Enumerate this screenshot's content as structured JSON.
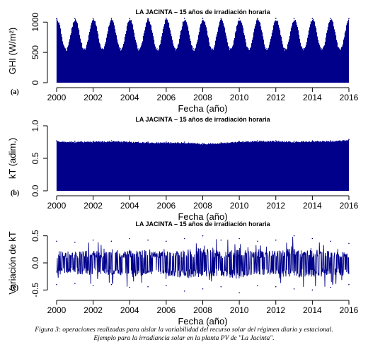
{
  "caption": {
    "line1": "Figura 3: operaciones realizadas para aislar la variabilidad del recurso solar del régimen diario y estacional.",
    "line2": "Ejemplo para la irradiancia solar en la planta PV de \"La Jacinta\"."
  },
  "chart_data": [
    {
      "type": "area",
      "panel_label": "(a)",
      "title": "LA JACINTA – 15 años de irradiación horaria",
      "xlabel": "Fecha (año)",
      "ylabel": "GHI (W/m²)",
      "xlim": [
        2000,
        2016
      ],
      "ylim": [
        0,
        1050
      ],
      "x_ticks": [
        "2000",
        "2002",
        "2004",
        "2006",
        "2008",
        "2010",
        "2012",
        "2014",
        "2016"
      ],
      "y_ticks": [
        "0",
        "500",
        "1000"
      ],
      "color": "#00008b",
      "series": [
        {
          "x": [
            2000.0,
            2000.5,
            2001.0,
            2001.5,
            2002.0,
            2002.5,
            2003.0,
            2003.5,
            2004.0,
            2004.5,
            2005.0,
            2005.5,
            2006.0,
            2006.5,
            2007.0,
            2007.5,
            2008.0,
            2008.5,
            2009.0,
            2009.5,
            2010.0,
            2010.5,
            2011.0,
            2011.5,
            2012.0,
            2012.5,
            2013.0,
            2013.5,
            2014.0,
            2014.5,
            2015.0,
            2015.5,
            2016.0
          ],
          "values": [
            1060,
            560,
            1060,
            560,
            1060,
            560,
            1060,
            560,
            1060,
            560,
            1060,
            560,
            1060,
            560,
            1060,
            560,
            1060,
            560,
            1060,
            560,
            1060,
            560,
            1060,
            560,
            1060,
            560,
            1060,
            560,
            1060,
            560,
            1060,
            560,
            1060
          ]
        }
      ]
    },
    {
      "type": "area",
      "panel_label": "(b)",
      "title": "LA JACINTA – 15 años de irradiación horaria",
      "xlabel": "Fecha (año)",
      "ylabel": "kT (adim.)",
      "xlim": [
        2000,
        2016
      ],
      "ylim": [
        0,
        1.0
      ],
      "x_ticks": [
        "2000",
        "2002",
        "2004",
        "2006",
        "2008",
        "2010",
        "2012",
        "2014",
        "2016"
      ],
      "y_ticks": [
        "0.0",
        "0.5",
        "1.0"
      ],
      "color": "#00008b",
      "series": [
        {
          "x": [
            2000.0,
            2001.0,
            2002.0,
            2003.0,
            2004.0,
            2005.0,
            2006.0,
            2007.0,
            2008.0,
            2009.0,
            2010.0,
            2011.0,
            2012.0,
            2013.0,
            2014.0,
            2015.0,
            2016.0
          ],
          "values": [
            0.77,
            0.76,
            0.76,
            0.77,
            0.76,
            0.75,
            0.75,
            0.75,
            0.73,
            0.74,
            0.76,
            0.77,
            0.77,
            0.76,
            0.77,
            0.77,
            0.79
          ]
        }
      ]
    },
    {
      "type": "line",
      "panel_label": "(c)",
      "title": "LA JACINTA – 15 años de irradiación horaria",
      "xlabel": "Fecha (año)",
      "ylabel": "Variación de kT",
      "xlim": [
        2000,
        2016
      ],
      "ylim": [
        -0.6,
        0.6
      ],
      "x_ticks": [
        "2000",
        "2002",
        "2004",
        "2006",
        "2008",
        "2010",
        "2012",
        "2014",
        "2016"
      ],
      "y_ticks": [
        "-0.5",
        "0.0",
        "0.5"
      ],
      "color": "#00008b",
      "series": [
        {
          "x": [
            2000.0,
            2001.0,
            2002.0,
            2003.0,
            2004.0,
            2005.0,
            2006.0,
            2007.0,
            2008.0,
            2009.0,
            2010.0,
            2011.0,
            2012.0,
            2013.0,
            2014.0,
            2015.0,
            2016.0
          ],
          "upper": [
            0.4,
            0.38,
            0.42,
            0.4,
            0.45,
            0.42,
            0.4,
            0.45,
            0.5,
            0.42,
            0.45,
            0.4,
            0.42,
            0.5,
            0.45,
            0.4,
            0.36
          ],
          "lower": [
            -0.4,
            -0.38,
            -0.42,
            -0.4,
            -0.45,
            -0.44,
            -0.42,
            -0.52,
            -0.48,
            -0.44,
            -0.55,
            -0.42,
            -0.44,
            -0.48,
            -0.5,
            -0.45,
            -0.4
          ]
        }
      ]
    }
  ]
}
